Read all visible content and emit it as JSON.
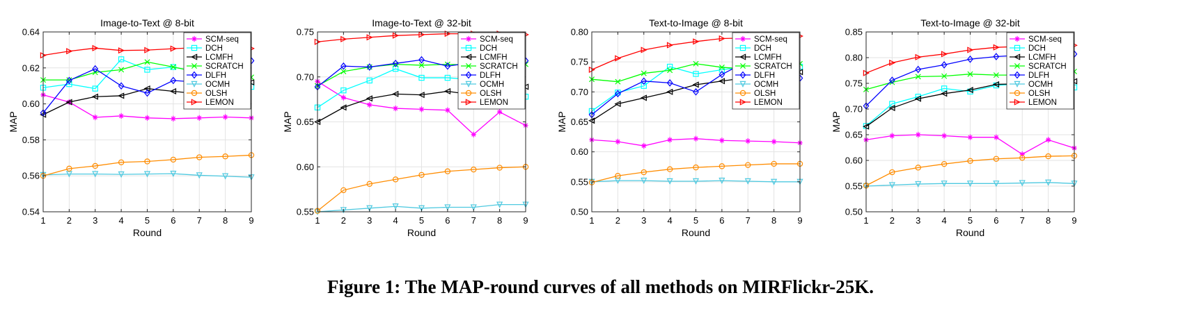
{
  "figure": {
    "caption": "Figure 1: The MAP-round curves of all methods on MIRFlickr-25K."
  },
  "series_styles": [
    {
      "name": "SCM-seq",
      "color": "#ff00ff",
      "marker": "star"
    },
    {
      "name": "DCH",
      "color": "#00ffff",
      "marker": "square"
    },
    {
      "name": "LCMFH",
      "color": "#000000",
      "marker": "triangle-left"
    },
    {
      "name": "SCRATCH",
      "color": "#00ff00",
      "marker": "x"
    },
    {
      "name": "DLFH",
      "color": "#0000ff",
      "marker": "diamond"
    },
    {
      "name": "OCMH",
      "color": "#4ec9e0",
      "marker": "triangle-down"
    },
    {
      "name": "OLSH",
      "color": "#ff8c00",
      "marker": "circle"
    },
    {
      "name": "LEMON",
      "color": "#ff0000",
      "marker": "triangle-right"
    }
  ],
  "chart_data": [
    {
      "type": "line",
      "title": "Image-to-Text @ 8-bit",
      "xlabel": "Round",
      "ylabel": "MAP",
      "x": [
        1,
        2,
        3,
        4,
        5,
        6,
        7,
        8,
        9
      ],
      "xlim": [
        1,
        9
      ],
      "ylim": [
        0.54,
        0.64
      ],
      "yticks": [
        "0.54",
        "0.56",
        "0.58",
        "0.60",
        "0.62",
        "0.64"
      ],
      "grid": true,
      "legend": "top-right",
      "series": [
        {
          "name": "SCM-seq",
          "values": [
            0.605,
            0.601,
            0.5925,
            0.5933,
            0.5922,
            0.5918,
            0.5922,
            0.5927,
            0.5922
          ]
        },
        {
          "name": "DCH",
          "values": [
            0.609,
            0.611,
            0.6085,
            0.6248,
            0.619,
            0.6205,
            0.6175,
            0.614,
            0.6095
          ]
        },
        {
          "name": "LCMFH",
          "values": [
            0.594,
            0.601,
            0.604,
            0.6045,
            0.6085,
            0.607,
            0.6055,
            0.608,
            0.612
          ]
        },
        {
          "name": "SCRATCH",
          "values": [
            0.6133,
            0.6133,
            0.6175,
            0.619,
            0.6233,
            0.6205,
            0.6175,
            0.619,
            0.6148
          ]
        },
        {
          "name": "DLFH",
          "values": [
            0.595,
            0.613,
            0.6195,
            0.61,
            0.606,
            0.613,
            0.612,
            0.613,
            0.624
          ]
        },
        {
          "name": "OCMH",
          "values": [
            0.5605,
            0.561,
            0.561,
            0.5608,
            0.561,
            0.5612,
            0.5603,
            0.5598,
            0.5592
          ]
        },
        {
          "name": "OLSH",
          "values": [
            0.56,
            0.564,
            0.5655,
            0.5675,
            0.568,
            0.569,
            0.5703,
            0.5708,
            0.5715
          ]
        },
        {
          "name": "LEMON",
          "values": [
            0.627,
            0.6293,
            0.631,
            0.6297,
            0.6299,
            0.6307,
            0.6313,
            0.6312,
            0.6308
          ]
        }
      ]
    },
    {
      "type": "line",
      "title": "Image-to-Text @ 32-bit",
      "xlabel": "Round",
      "ylabel": "MAP",
      "x": [
        1,
        2,
        3,
        4,
        5,
        6,
        7,
        8,
        9
      ],
      "xlim": [
        1,
        9
      ],
      "ylim": [
        0.55,
        0.75
      ],
      "yticks": [
        "0.55",
        "0.60",
        "0.65",
        "0.70",
        "0.75"
      ],
      "grid": true,
      "legend": "top-right",
      "series": [
        {
          "name": "SCM-seq",
          "values": [
            0.695,
            0.677,
            0.669,
            0.665,
            0.664,
            0.663,
            0.636,
            0.661,
            0.646
          ]
        },
        {
          "name": "DCH",
          "values": [
            0.666,
            0.685,
            0.696,
            0.709,
            0.699,
            0.699,
            0.697,
            0.694,
            0.678
          ]
        },
        {
          "name": "LCMFH",
          "values": [
            0.65,
            0.666,
            0.676,
            0.681,
            0.68,
            0.684,
            0.68,
            0.681,
            0.689
          ]
        },
        {
          "name": "SCRATCH",
          "values": [
            0.69,
            0.706,
            0.711,
            0.714,
            0.713,
            0.714,
            0.713,
            0.714,
            0.714
          ]
        },
        {
          "name": "DLFH",
          "values": [
            0.689,
            0.712,
            0.711,
            0.715,
            0.719,
            0.712,
            0.716,
            0.716,
            0.718
          ]
        },
        {
          "name": "OCMH",
          "values": [
            0.55,
            0.552,
            0.554,
            0.556,
            0.554,
            0.555,
            0.555,
            0.558,
            0.558
          ]
        },
        {
          "name": "OLSH",
          "values": [
            0.551,
            0.574,
            0.581,
            0.586,
            0.591,
            0.595,
            0.597,
            0.599,
            0.6
          ]
        },
        {
          "name": "LEMON",
          "values": [
            0.739,
            0.742,
            0.744,
            0.746,
            0.747,
            0.748,
            0.748,
            0.748,
            0.747
          ]
        }
      ]
    },
    {
      "type": "line",
      "title": "Text-to-Image @ 8-bit",
      "xlabel": "Round",
      "ylabel": "MAP",
      "x": [
        1,
        2,
        3,
        4,
        5,
        6,
        7,
        8,
        9
      ],
      "xlim": [
        1,
        9
      ],
      "ylim": [
        0.5,
        0.8
      ],
      "yticks": [
        "0.50",
        "0.55",
        "0.60",
        "0.65",
        "0.70",
        "0.75",
        "0.80"
      ],
      "grid": true,
      "legend": "top-right",
      "series": [
        {
          "name": "SCM-seq",
          "values": [
            0.62,
            0.617,
            0.61,
            0.62,
            0.622,
            0.619,
            0.618,
            0.617,
            0.615
          ]
        },
        {
          "name": "DCH",
          "values": [
            0.668,
            0.699,
            0.71,
            0.742,
            0.73,
            0.737,
            0.742,
            0.745,
            0.742
          ]
        },
        {
          "name": "LCMFH",
          "values": [
            0.652,
            0.68,
            0.69,
            0.7,
            0.712,
            0.718,
            0.724,
            0.728,
            0.733
          ]
        },
        {
          "name": "SCRATCH",
          "values": [
            0.721,
            0.717,
            0.731,
            0.736,
            0.747,
            0.741,
            0.738,
            0.747,
            0.747
          ]
        },
        {
          "name": "DLFH",
          "values": [
            0.662,
            0.697,
            0.718,
            0.715,
            0.7,
            0.729,
            0.752,
            0.758,
            0.723
          ]
        },
        {
          "name": "OCMH",
          "values": [
            0.55,
            0.552,
            0.552,
            0.551,
            0.551,
            0.552,
            0.551,
            0.55,
            0.55
          ]
        },
        {
          "name": "OLSH",
          "values": [
            0.549,
            0.56,
            0.566,
            0.571,
            0.574,
            0.576,
            0.578,
            0.58,
            0.58
          ]
        },
        {
          "name": "LEMON",
          "values": [
            0.737,
            0.756,
            0.77,
            0.778,
            0.784,
            0.789,
            0.79,
            0.793,
            0.793
          ]
        }
      ]
    },
    {
      "type": "line",
      "title": "Text-to-Image @ 32-bit",
      "xlabel": "Round",
      "ylabel": "MAP",
      "x": [
        1,
        2,
        3,
        4,
        5,
        6,
        7,
        8,
        9
      ],
      "xlim": [
        1,
        9
      ],
      "ylim": [
        0.5,
        0.85
      ],
      "yticks": [
        "0.50",
        "0.55",
        "0.60",
        "0.65",
        "0.70",
        "0.75",
        "0.80",
        "0.85"
      ],
      "grid": true,
      "legend": "top-right",
      "series": [
        {
          "name": "SCM-seq",
          "values": [
            0.64,
            0.648,
            0.65,
            0.648,
            0.645,
            0.645,
            0.612,
            0.64,
            0.624
          ]
        },
        {
          "name": "DCH",
          "values": [
            0.667,
            0.71,
            0.724,
            0.74,
            0.734,
            0.746,
            0.749,
            0.747,
            0.742
          ]
        },
        {
          "name": "LCMFH",
          "values": [
            0.666,
            0.702,
            0.72,
            0.73,
            0.737,
            0.748,
            0.749,
            0.75,
            0.754
          ]
        },
        {
          "name": "SCRATCH",
          "values": [
            0.738,
            0.752,
            0.763,
            0.764,
            0.768,
            0.766,
            0.766,
            0.77,
            0.773
          ]
        },
        {
          "name": "DLFH",
          "values": [
            0.706,
            0.756,
            0.777,
            0.786,
            0.797,
            0.802,
            0.805,
            0.806,
            0.807
          ]
        },
        {
          "name": "OCMH",
          "values": [
            0.55,
            0.552,
            0.554,
            0.555,
            0.555,
            0.555,
            0.556,
            0.557,
            0.555
          ]
        },
        {
          "name": "OLSH",
          "values": [
            0.551,
            0.577,
            0.586,
            0.593,
            0.599,
            0.603,
            0.605,
            0.608,
            0.609
          ]
        },
        {
          "name": "LEMON",
          "values": [
            0.77,
            0.79,
            0.801,
            0.807,
            0.815,
            0.82,
            0.822,
            0.823,
            0.824
          ]
        }
      ]
    }
  ]
}
